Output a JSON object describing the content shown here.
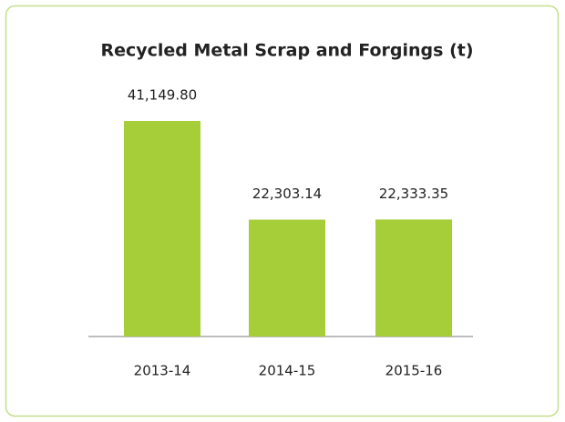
{
  "chart_data": {
    "type": "bar",
    "title": "Recycled Metal Scrap and Forgings (t)",
    "categories": [
      "2013-14",
      "2014-15",
      "2015-16"
    ],
    "values": [
      41149.8,
      22303.14,
      22333.35
    ],
    "value_labels": [
      "41,149.80",
      "22,303.14",
      "22,333.35"
    ],
    "color": "#a6ce39"
  }
}
